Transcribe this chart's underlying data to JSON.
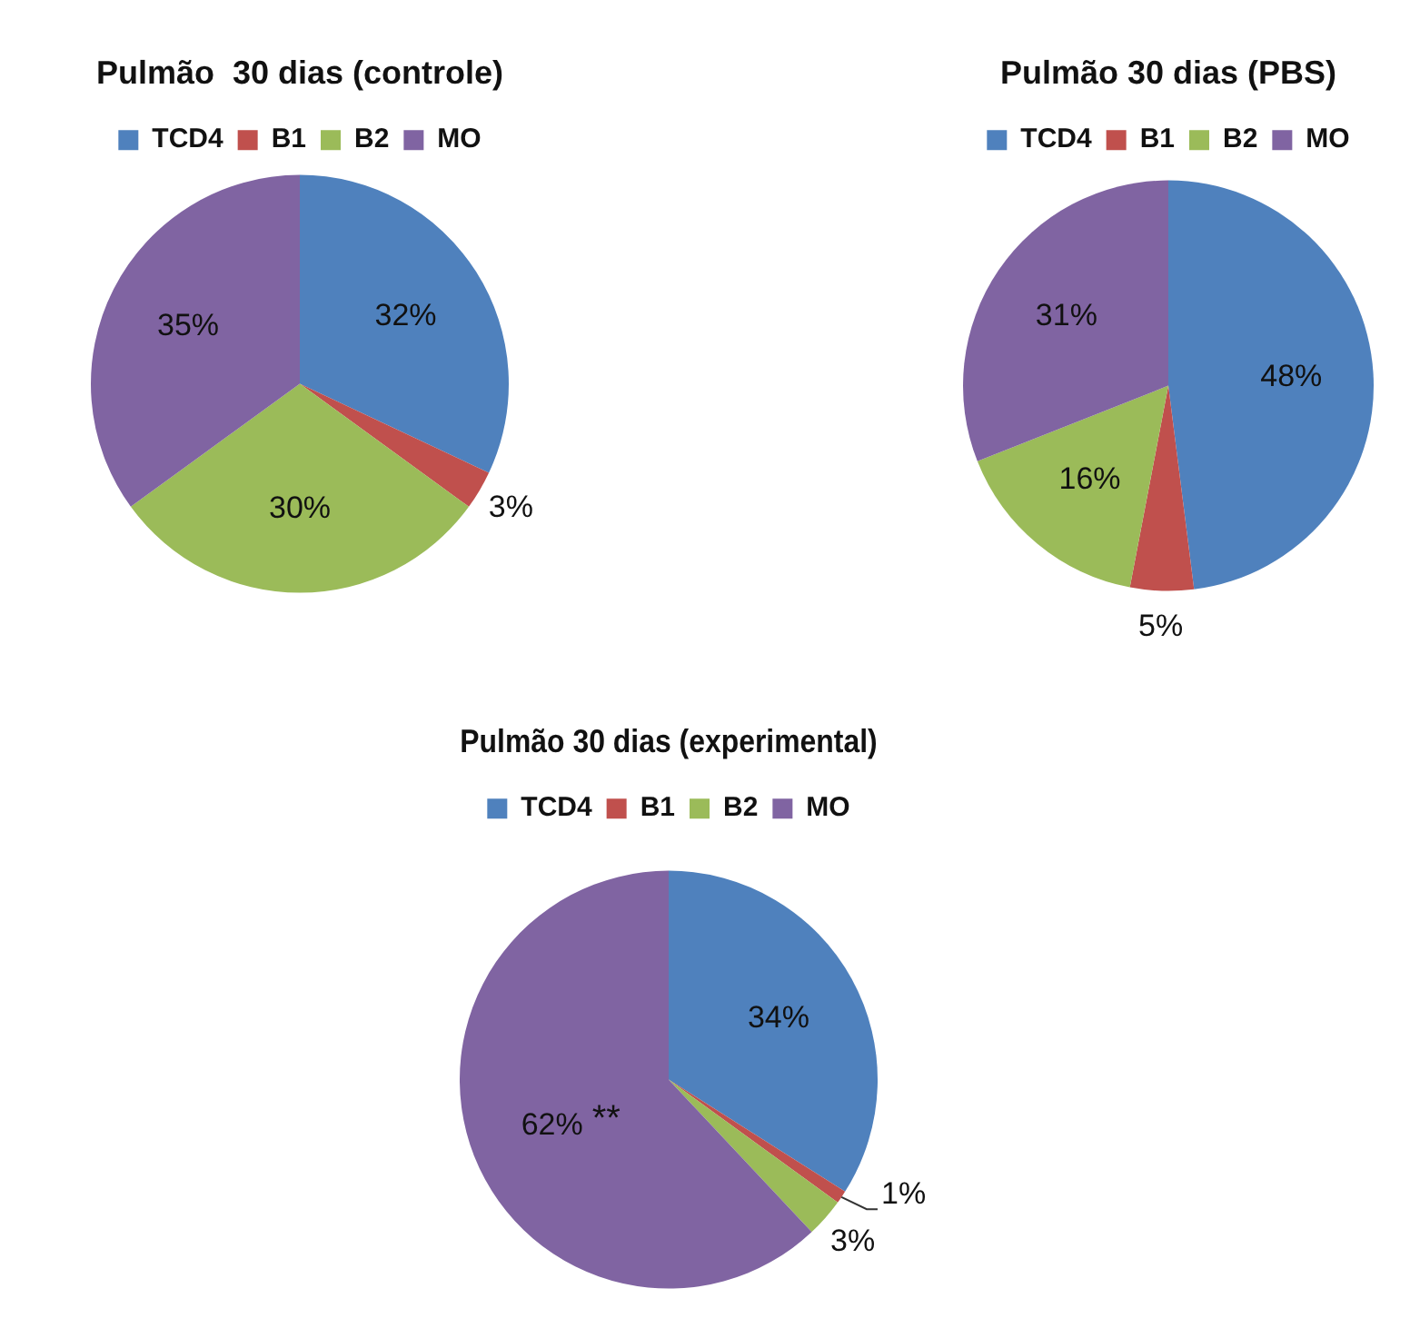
{
  "chart_data": [
    {
      "type": "pie",
      "title": "Pulmão  30 dias (controle)",
      "categories": [
        "TCD4",
        "B1",
        "B2",
        "MO"
      ],
      "values": [
        32,
        3,
        30,
        35
      ],
      "colors": [
        "#4f81bd",
        "#c0504d",
        "#9bbb59",
        "#8064a2"
      ],
      "value_labels": [
        "32%",
        "3%",
        "30%",
        "35%"
      ],
      "legend": "top"
    },
    {
      "type": "pie",
      "title": "Pulmão 30 dias (PBS)",
      "categories": [
        "TCD4",
        "B1",
        "B2",
        "MO"
      ],
      "values": [
        48,
        5,
        16,
        31
      ],
      "colors": [
        "#4f81bd",
        "#c0504d",
        "#9bbb59",
        "#8064a2"
      ],
      "value_labels": [
        "48%",
        "5%",
        "16%",
        "31%"
      ],
      "legend": "top"
    },
    {
      "type": "pie",
      "title": "Pulmão 30 dias (experimental)",
      "categories": [
        "TCD4",
        "B1",
        "B2",
        "MO"
      ],
      "values": [
        34,
        1,
        3,
        62
      ],
      "colors": [
        "#4f81bd",
        "#c0504d",
        "#9bbb59",
        "#8064a2"
      ],
      "value_labels": [
        "34%",
        "1%",
        "3%",
        "62%"
      ],
      "legend": "top",
      "annotations": [
        {
          "text": "**",
          "x": "MO"
        }
      ]
    }
  ]
}
